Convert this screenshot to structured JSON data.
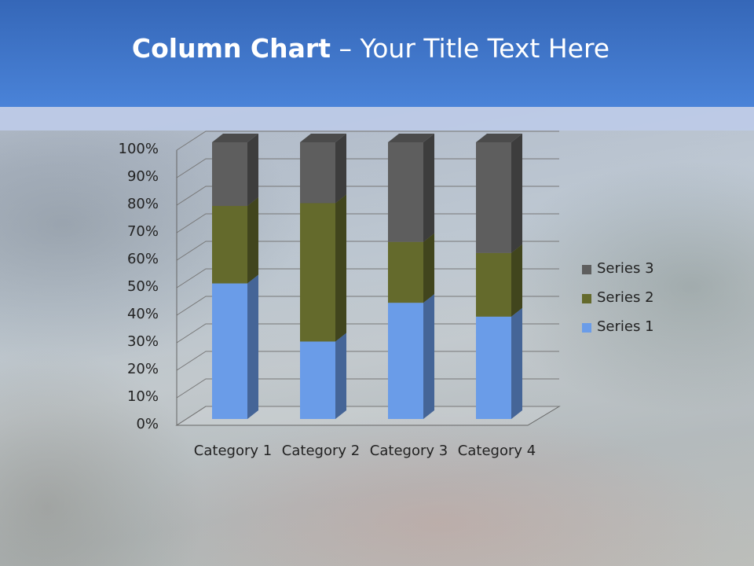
{
  "header": {
    "title_bold": "Column Chart",
    "title_rest": "– Your Title Text Here"
  },
  "chart_data": {
    "type": "stacked-column-3d",
    "categories": [
      "Category 1",
      "Category 2",
      "Category 3",
      "Category 4"
    ],
    "series": [
      {
        "name": "Series 1",
        "color": "#6a9ce8",
        "values": [
          49,
          28,
          42,
          37
        ]
      },
      {
        "name": "Series 2",
        "color": "#646a2c",
        "values": [
          28,
          50,
          22,
          23
        ]
      },
      {
        "name": "Series 3",
        "color": "#5e5e5e",
        "values": [
          23,
          22,
          36,
          40
        ]
      }
    ],
    "ylim": [
      0,
      100
    ],
    "yticks": [
      {
        "value": 0,
        "label": "0%"
      },
      {
        "value": 10,
        "label": "10%"
      },
      {
        "value": 20,
        "label": "20%"
      },
      {
        "value": 30,
        "label": "30%"
      },
      {
        "value": 40,
        "label": "40%"
      },
      {
        "value": 50,
        "label": "50%"
      },
      {
        "value": 60,
        "label": "60%"
      },
      {
        "value": 70,
        "label": "70%"
      },
      {
        "value": 80,
        "label": "80%"
      },
      {
        "value": 90,
        "label": "90%"
      },
      {
        "value": 100,
        "label": "100%"
      }
    ],
    "grid": true,
    "legend": "right"
  }
}
